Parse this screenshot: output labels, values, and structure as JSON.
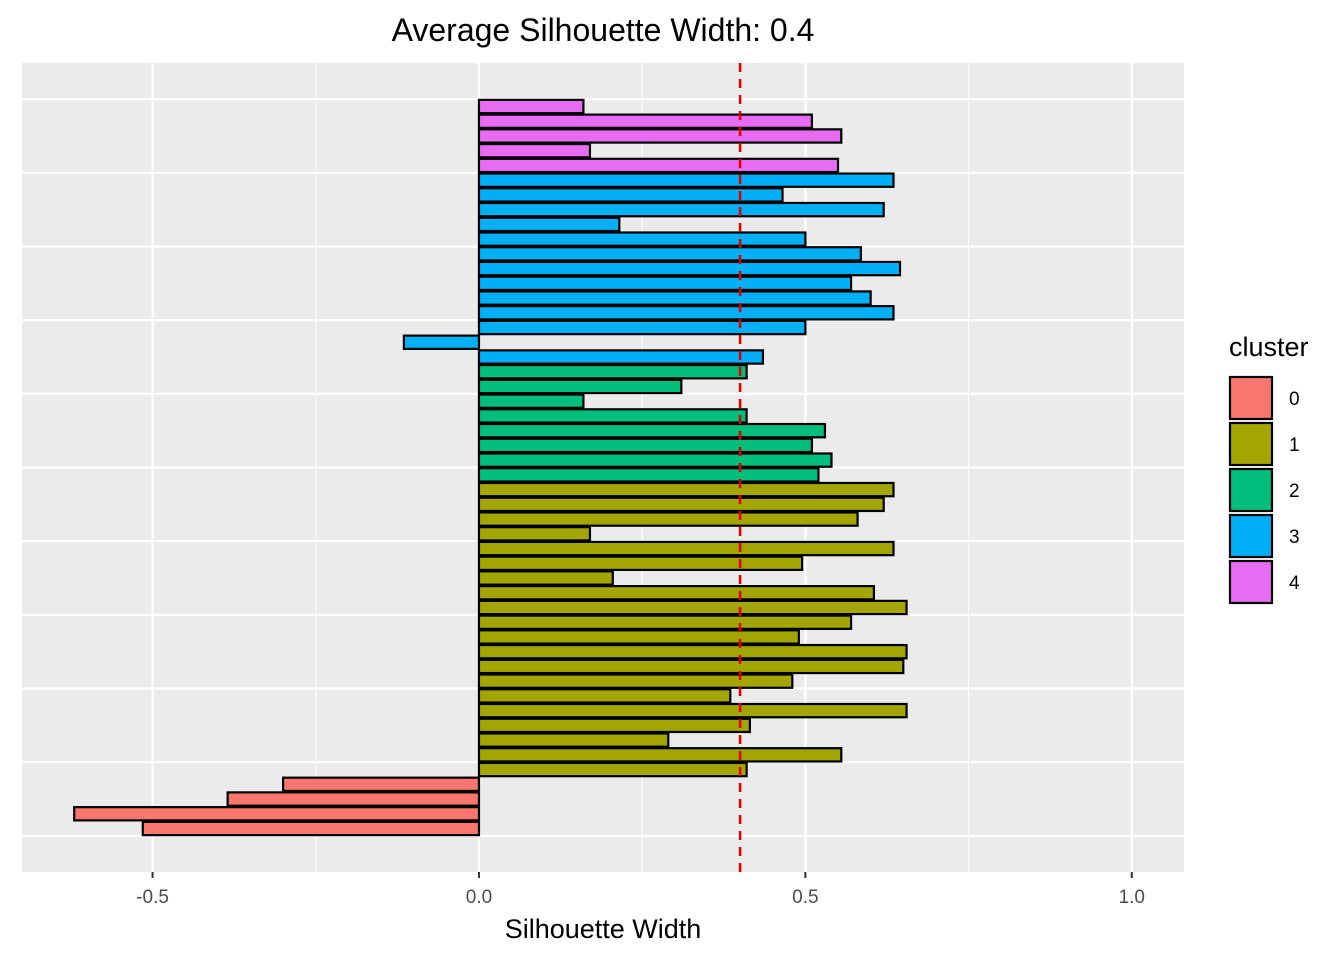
{
  "chart_data": {
    "type": "bar",
    "orientation": "horizontal",
    "title": "Average Silhouette Width: 0.4",
    "xlabel": "Silhouette Width",
    "ylabel": "",
    "xlim": [
      -0.7,
      1.08
    ],
    "xticks": [
      -0.5,
      0.0,
      0.5,
      1.0
    ],
    "xtick_labels": [
      "-0.5",
      "0.0",
      "0.5",
      "1.0"
    ],
    "reference_line": {
      "value": 0.4,
      "color": "#e00000",
      "style": "dashed"
    },
    "grid": true,
    "legend": {
      "title": "cluster",
      "position": "right"
    },
    "clusters": [
      {
        "name": "0",
        "color": "#F8766D"
      },
      {
        "name": "1",
        "color": "#A3A500"
      },
      {
        "name": "2",
        "color": "#00BF7D"
      },
      {
        "name": "3",
        "color": "#00B0F6"
      },
      {
        "name": "4",
        "color": "#E76BF3"
      }
    ],
    "bars_top_to_bottom": [
      {
        "cluster": "4",
        "value": 0.16
      },
      {
        "cluster": "4",
        "value": 0.51
      },
      {
        "cluster": "4",
        "value": 0.555
      },
      {
        "cluster": "4",
        "value": 0.17
      },
      {
        "cluster": "4",
        "value": 0.55
      },
      {
        "cluster": "3",
        "value": 0.635
      },
      {
        "cluster": "3",
        "value": 0.465
      },
      {
        "cluster": "3",
        "value": 0.62
      },
      {
        "cluster": "3",
        "value": 0.215
      },
      {
        "cluster": "3",
        "value": 0.5
      },
      {
        "cluster": "3",
        "value": 0.585
      },
      {
        "cluster": "3",
        "value": 0.645
      },
      {
        "cluster": "3",
        "value": 0.57
      },
      {
        "cluster": "3",
        "value": 0.6
      },
      {
        "cluster": "3",
        "value": 0.635
      },
      {
        "cluster": "3",
        "value": 0.5
      },
      {
        "cluster": "3",
        "value": -0.115
      },
      {
        "cluster": "3",
        "value": 0.435
      },
      {
        "cluster": "2",
        "value": 0.41
      },
      {
        "cluster": "2",
        "value": 0.31
      },
      {
        "cluster": "2",
        "value": 0.16
      },
      {
        "cluster": "2",
        "value": 0.41
      },
      {
        "cluster": "2",
        "value": 0.53
      },
      {
        "cluster": "2",
        "value": 0.51
      },
      {
        "cluster": "2",
        "value": 0.54
      },
      {
        "cluster": "2",
        "value": 0.52
      },
      {
        "cluster": "1",
        "value": 0.635
      },
      {
        "cluster": "1",
        "value": 0.62
      },
      {
        "cluster": "1",
        "value": 0.58
      },
      {
        "cluster": "1",
        "value": 0.17
      },
      {
        "cluster": "1",
        "value": 0.635
      },
      {
        "cluster": "1",
        "value": 0.495
      },
      {
        "cluster": "1",
        "value": 0.205
      },
      {
        "cluster": "1",
        "value": 0.605
      },
      {
        "cluster": "1",
        "value": 0.655
      },
      {
        "cluster": "1",
        "value": 0.57
      },
      {
        "cluster": "1",
        "value": 0.49
      },
      {
        "cluster": "1",
        "value": 0.655
      },
      {
        "cluster": "1",
        "value": 0.65
      },
      {
        "cluster": "1",
        "value": 0.48
      },
      {
        "cluster": "1",
        "value": 0.385
      },
      {
        "cluster": "1",
        "value": 0.655
      },
      {
        "cluster": "1",
        "value": 0.415
      },
      {
        "cluster": "1",
        "value": 0.29
      },
      {
        "cluster": "1",
        "value": 0.555
      },
      {
        "cluster": "1",
        "value": 0.41
      },
      {
        "cluster": "0",
        "value": -0.3
      },
      {
        "cluster": "0",
        "value": -0.385
      },
      {
        "cluster": "0",
        "value": -0.62
      },
      {
        "cluster": "0",
        "value": -0.515
      }
    ]
  }
}
